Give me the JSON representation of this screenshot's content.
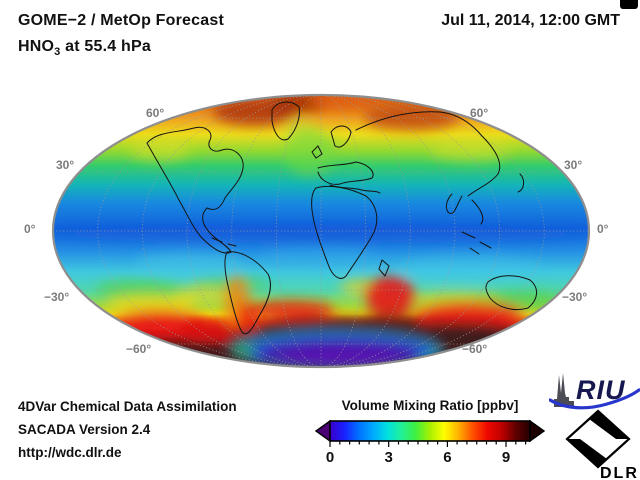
{
  "header": {
    "title": "GOME−2 / MetOp Forecast",
    "species_formula": "HNO",
    "species_subscript": "3",
    "species_level": " at 55.4 hPa",
    "datetime": "Jul 11, 2014, 12:00 GMT"
  },
  "map": {
    "projection": "Mollweide",
    "lat_left": [
      "60°",
      "30°",
      "0°",
      "−30°",
      "−60°"
    ],
    "lat_right": [
      "60°",
      "30°",
      "0°",
      "−30°",
      "−60°"
    ]
  },
  "footer": {
    "line1": "4DVar Chemical Data Assimilation",
    "line2": "SACADA Version 2.4",
    "line3": "http://wdc.dlr.de"
  },
  "colorbar": {
    "title": "Volume Mixing Ratio [ppbv]",
    "unit": "ppbv",
    "ticks": [
      "0",
      "3",
      "6",
      "9"
    ],
    "range_min": 0,
    "range_max": 10.3,
    "left_arrow_color": "#4a0074",
    "right_arrow_color": "#1c0000",
    "gradient": [
      "#3c00c8",
      "#1820ff",
      "#0070ff",
      "#00a8ff",
      "#00e0e0",
      "#20f098",
      "#40f040",
      "#a8f000",
      "#ffff00",
      "#ffb000",
      "#ff5000",
      "#f00800",
      "#c00000",
      "#600000",
      "#240000"
    ]
  },
  "logos": {
    "riu": "RIU",
    "dlr": "DLR"
  },
  "chart_data": {
    "type": "heatmap",
    "title": "GOME−2 / MetOp Forecast — HNO3 at 55.4 hPa — Jul 11, 2014, 12:00 GMT",
    "colorbar_label": "Volume Mixing Ratio [ppbv]",
    "colorbar_ticks": [
      0,
      3,
      6,
      9
    ],
    "colorbar_range": [
      0,
      10.3
    ],
    "graticule_lat_labels": [
      60,
      30,
      0,
      -30,
      -60
    ],
    "approx_zonal_mean_ppbv": {
      "lat_90N": 8.5,
      "lat_60N": 7.0,
      "lat_45N": 5.5,
      "lat_30N": 4.0,
      "lat_15N": 3.0,
      "lat_0": 2.3,
      "lat_15S": 3.0,
      "lat_30S": 3.5,
      "lat_45S": 6.0,
      "lat_55S": 9.5,
      "lat_65S": 10.3,
      "lat_80S": 1.2
    }
  }
}
